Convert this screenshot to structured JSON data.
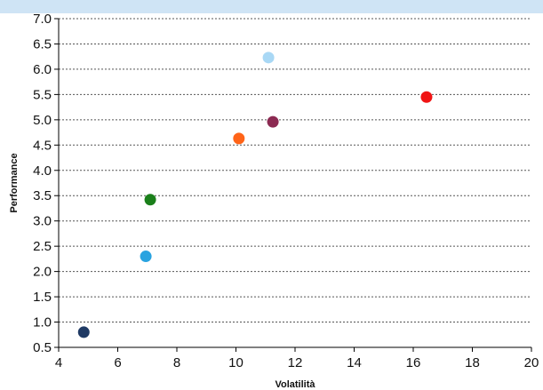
{
  "chart_data": {
    "type": "scatter",
    "title": "",
    "xlabel": "Volatilità",
    "ylabel": "Performance",
    "xlim": [
      4,
      20
    ],
    "ylim": [
      0.5,
      7.0
    ],
    "xticks": [
      4,
      6,
      8,
      10,
      12,
      14,
      16,
      18,
      20
    ],
    "yticks": [
      0.5,
      1.0,
      1.5,
      2.0,
      2.5,
      3.0,
      3.5,
      4.0,
      4.5,
      5.0,
      5.5,
      6.0,
      6.5,
      7.0
    ],
    "grid": "horizontal-dotted",
    "legend": "none",
    "points": [
      {
        "x": 4.85,
        "y": 0.8,
        "color": "#1f3a64"
      },
      {
        "x": 6.95,
        "y": 2.3,
        "color": "#29a3e0"
      },
      {
        "x": 7.1,
        "y": 3.42,
        "color": "#1a7f1a"
      },
      {
        "x": 10.1,
        "y": 4.63,
        "color": "#ff6418"
      },
      {
        "x": 11.1,
        "y": 6.23,
        "color": "#a9d8f5"
      },
      {
        "x": 11.25,
        "y": 4.96,
        "color": "#8c2a52"
      },
      {
        "x": 16.45,
        "y": 5.45,
        "color": "#f01414"
      }
    ]
  }
}
